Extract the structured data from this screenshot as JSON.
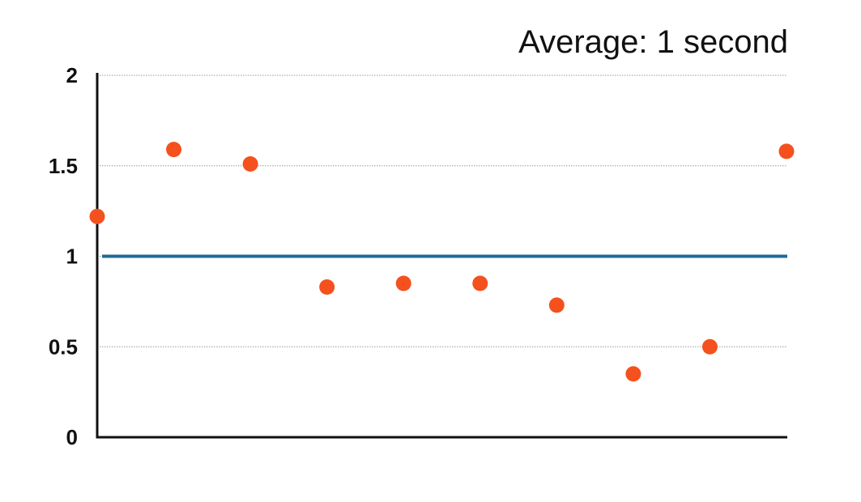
{
  "chart_data": {
    "type": "scatter",
    "title": "Average: 1 second",
    "xlabel": "",
    "ylabel": "",
    "ylim": [
      0,
      2
    ],
    "yticks": [
      "0",
      "0.5",
      "1",
      "1.5",
      "2"
    ],
    "ytick_values": [
      0,
      0.5,
      1,
      1.5,
      2
    ],
    "grid": true,
    "legend": "none",
    "x": [
      1,
      2,
      3,
      4,
      5,
      6,
      7,
      8,
      9,
      10
    ],
    "series": [
      {
        "values": [
          1.22,
          1.59,
          1.51,
          0.83,
          0.85,
          0.85,
          0.73,
          0.35,
          0.5,
          1.58
        ],
        "color": "#f4511e"
      }
    ],
    "reference_line": {
      "value": 1,
      "color": "#1f6b96"
    },
    "axis_color": "#111111",
    "grid_color": "#999999"
  }
}
